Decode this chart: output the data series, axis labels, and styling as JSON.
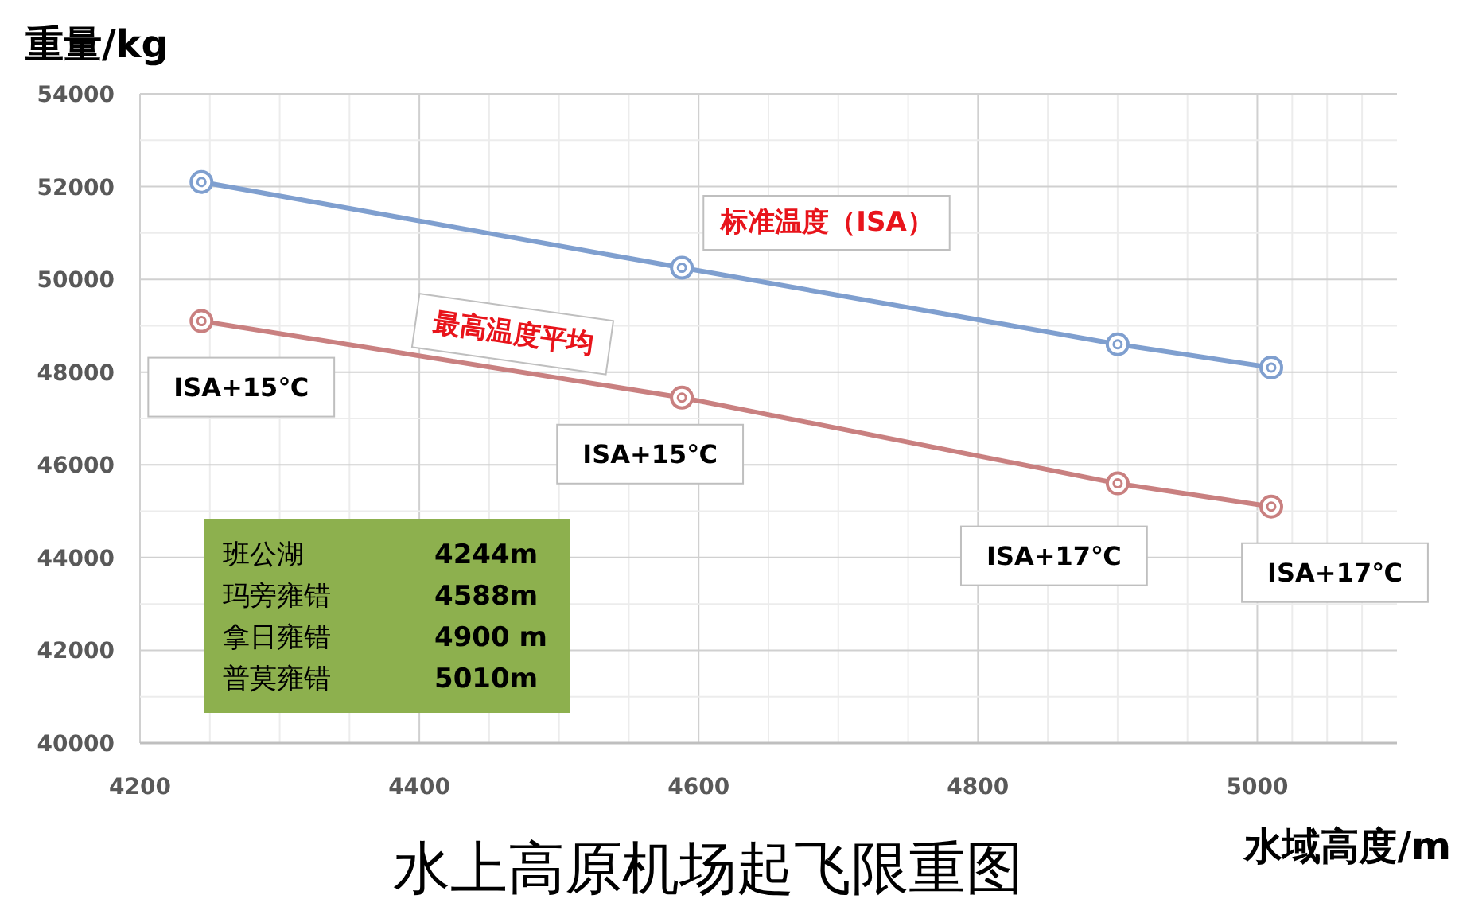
{
  "chart_data": {
    "type": "line",
    "title": "水上高原机场起飞限重图",
    "xlabel": "水域高度/m",
    "ylabel": "重量/kg",
    "x": [
      4244,
      4588,
      4900,
      5010
    ],
    "series": [
      {
        "name": "标准温度（ISA）",
        "color": "#7f9fcf",
        "values": [
          52100,
          50250,
          48600,
          48100
        ]
      },
      {
        "name": "最高温度平均",
        "color": "#c98080",
        "values": [
          49100,
          47450,
          45600,
          45100
        ]
      }
    ],
    "xlim": [
      4200,
      5100
    ],
    "xticks": [
      4200,
      4400,
      4600,
      4800,
      5000
    ],
    "ylim": [
      40000,
      54000
    ],
    "yticks": [
      40000,
      42000,
      44000,
      46000,
      48000,
      50000,
      52000,
      54000
    ],
    "grid": true,
    "marker": "circle",
    "line_style": "solid",
    "annotations": [
      {
        "text": "ISA+15℃",
        "x": 4244,
        "y": 49100
      },
      {
        "text": "ISA+15℃",
        "x": 4588,
        "y": 47450
      },
      {
        "text": "ISA+17℃",
        "x": 4900,
        "y": 45600
      },
      {
        "text": "ISA+17℃",
        "x": 5010,
        "y": 45100
      },
      "班公湖",
      "4244m",
      "玛旁雍错",
      "4588m",
      "拿日雍错",
      "4900 m",
      "普莫雍错",
      "5010m"
    ]
  }
}
